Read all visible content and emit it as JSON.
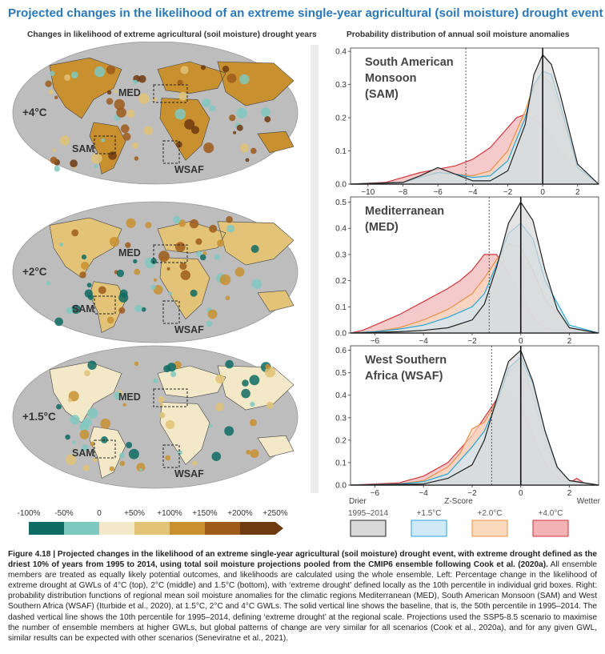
{
  "figure_title": "Projected changes in the likelihood of an extreme single-year agricultural (soil moisture) drought event",
  "left_subtitle": "Changes in likelihood of extreme agricultural (soil moisture) drought years",
  "right_subtitle": "Probability distribution of annual soil moisture anomalies",
  "maps": [
    {
      "warming": "+4°C",
      "regions": [
        "MED",
        "SAM",
        "WSAF"
      ]
    },
    {
      "warming": "+2°C",
      "regions": [
        "MED",
        "SAM",
        "WSAF"
      ]
    },
    {
      "warming": "+1.5°C",
      "regions": [
        "MED",
        "SAM",
        "WSAF"
      ]
    }
  ],
  "colorbar": {
    "labels": [
      "-100%",
      "-50%",
      "0",
      "+50%",
      "+100%",
      "+150%",
      "+200%",
      "+250%"
    ],
    "colors": [
      "#0e6b63",
      "#7fc8bf",
      "#f3e8c8",
      "#e2c377",
      "#c8902f",
      "#9e5c1a",
      "#6e3a10"
    ]
  },
  "series_legend": [
    {
      "label": "1995–2014",
      "fill": "#d9d9d9",
      "stroke": "#222222"
    },
    {
      "label": "+1.5°C",
      "fill": "#cfe9f6",
      "stroke": "#2ba6d6"
    },
    {
      "label": "+2.0°C",
      "fill": "#fbd9bd",
      "stroke": "#e8914a"
    },
    {
      "label": "+4.0°C",
      "fill": "#f1b3b5",
      "stroke": "#d3363d"
    }
  ],
  "axis_text": {
    "drier": "Drier",
    "zscore": "Z-Score",
    "wetter": "Wetter"
  },
  "chart_data": [
    {
      "type": "area",
      "region_label": [
        "South American",
        "Monsoon",
        "(SAM)"
      ],
      "xlim": [
        -11,
        3.2
      ],
      "ylim": [
        0,
        0.41
      ],
      "xticks": [
        -10,
        -8,
        -6,
        -4,
        -2,
        0,
        2
      ],
      "yticks": [
        0.0,
        0.1,
        0.2,
        0.3,
        0.4
      ],
      "ytick_labels": [
        "0.0",
        "0.1",
        "0.2",
        "0.3",
        "0.4"
      ],
      "baseline_median": 0,
      "baseline_p10": -4.4,
      "series": [
        {
          "name": "+4.0°C",
          "x": [
            -11,
            -9,
            -8,
            -7,
            -6,
            -5,
            -4,
            -3,
            -2,
            -1.5,
            -1,
            0,
            1,
            2,
            3.2
          ],
          "y": [
            0,
            0.005,
            0.02,
            0.035,
            0.045,
            0.055,
            0.075,
            0.11,
            0.17,
            0.2,
            0.21,
            0.18,
            0.1,
            0.03,
            0
          ]
        },
        {
          "name": "+2.0°C",
          "x": [
            -11,
            -8,
            -7,
            -6,
            -5,
            -4,
            -3,
            -2,
            -1,
            -0.5,
            0,
            0.5,
            1,
            2,
            3.2
          ],
          "y": [
            0,
            0.005,
            0.02,
            0.035,
            0.03,
            0.025,
            0.04,
            0.1,
            0.22,
            0.3,
            0.33,
            0.3,
            0.22,
            0.05,
            0
          ]
        },
        {
          "name": "+1.5°C",
          "x": [
            -11,
            -8,
            -7,
            -6,
            -5,
            -4,
            -3,
            -2,
            -1,
            -0.5,
            0,
            0.5,
            1,
            2,
            3.2
          ],
          "y": [
            0,
            0.005,
            0.02,
            0.035,
            0.03,
            0.02,
            0.025,
            0.07,
            0.2,
            0.3,
            0.34,
            0.33,
            0.24,
            0.05,
            0
          ]
        },
        {
          "name": "1995–2014",
          "x": [
            -11,
            -8,
            -7,
            -6,
            -5,
            -4,
            -3,
            -2,
            -1,
            -0.5,
            0,
            0.5,
            1,
            2,
            3.2
          ],
          "y": [
            0,
            0.005,
            0.025,
            0.05,
            0.03,
            0.01,
            0.01,
            0.04,
            0.18,
            0.33,
            0.39,
            0.36,
            0.27,
            0.06,
            0
          ]
        }
      ]
    },
    {
      "type": "area",
      "region_label": [
        "Mediterranean",
        "(MED)"
      ],
      "xlim": [
        -7,
        3.2
      ],
      "ylim": [
        0,
        0.52
      ],
      "xticks": [
        -6,
        -4,
        -2,
        0,
        2
      ],
      "yticks": [
        0.0,
        0.1,
        0.2,
        0.3,
        0.4,
        0.5
      ],
      "ytick_labels": [
        "0.0",
        "0.1",
        "0.2",
        "0.3",
        "0.4",
        "0.5"
      ],
      "baseline_median": 0,
      "baseline_p10": -1.3,
      "series": [
        {
          "name": "+4.0°C",
          "x": [
            -7,
            -6.5,
            -6,
            -5,
            -4,
            -3,
            -2.5,
            -2,
            -1.5,
            -1,
            -0.5,
            0,
            0.5,
            1,
            2,
            3.2
          ],
          "y": [
            0,
            0.01,
            0.03,
            0.07,
            0.12,
            0.17,
            0.2,
            0.24,
            0.3,
            0.3,
            0.23,
            0.14,
            0.06,
            0.02,
            0.005,
            0
          ]
        },
        {
          "name": "+2.0°C",
          "x": [
            -7,
            -6,
            -5,
            -4,
            -3,
            -2,
            -1.5,
            -1,
            -0.5,
            0,
            0.5,
            1,
            2,
            3.2
          ],
          "y": [
            0,
            0.005,
            0.02,
            0.05,
            0.09,
            0.15,
            0.21,
            0.28,
            0.34,
            0.33,
            0.24,
            0.13,
            0.02,
            0
          ]
        },
        {
          "name": "+1.5°C",
          "x": [
            -7,
            -6,
            -5,
            -4,
            -3,
            -2,
            -1.5,
            -1,
            -0.5,
            0,
            0.5,
            1,
            2,
            3.2
          ],
          "y": [
            0,
            0.005,
            0.015,
            0.03,
            0.06,
            0.1,
            0.15,
            0.26,
            0.38,
            0.42,
            0.36,
            0.2,
            0.03,
            0
          ]
        },
        {
          "name": "1995–2014",
          "x": [
            -7,
            -5,
            -4,
            -3,
            -2,
            -1.5,
            -1,
            -0.5,
            0,
            0.5,
            1,
            1.5,
            2,
            3.2
          ],
          "y": [
            0,
            0.005,
            0.01,
            0.02,
            0.05,
            0.11,
            0.25,
            0.42,
            0.5,
            0.43,
            0.24,
            0.09,
            0.02,
            0
          ]
        }
      ]
    },
    {
      "type": "area",
      "region_label": [
        "West Southern",
        "Africa (WSAF)"
      ],
      "xlim": [
        -7,
        3.2
      ],
      "ylim": [
        0,
        0.62
      ],
      "xticks": [
        -6,
        -4,
        -2,
        0,
        2
      ],
      "yticks": [
        0.0,
        0.1,
        0.2,
        0.3,
        0.4,
        0.5,
        0.6
      ],
      "ytick_labels": [
        "0.0",
        "0.1",
        "0.2",
        "0.3",
        "0.4",
        "0.5",
        "0.6"
      ],
      "baseline_median": 0,
      "baseline_p10": -1.2,
      "series": [
        {
          "name": "+4.0°C",
          "x": [
            -7,
            -6,
            -5,
            -4,
            -3,
            -2.5,
            -2,
            -1.5,
            -1,
            -0.5,
            0,
            0.5,
            1,
            1.5,
            2,
            2.3,
            2.6,
            3.2
          ],
          "y": [
            0,
            0.005,
            0.01,
            0.04,
            0.1,
            0.16,
            0.22,
            0.3,
            0.38,
            0.42,
            0.36,
            0.22,
            0.1,
            0.03,
            0.01,
            0.03,
            0.01,
            0
          ]
        },
        {
          "name": "+2.0°C",
          "x": [
            -7,
            -5,
            -4,
            -3,
            -2.5,
            -2,
            -1.5,
            -1,
            -0.5,
            0,
            0.5,
            1,
            1.5,
            2,
            3.2
          ],
          "y": [
            0,
            0.005,
            0.02,
            0.08,
            0.14,
            0.25,
            0.28,
            0.37,
            0.5,
            0.55,
            0.4,
            0.2,
            0.07,
            0.02,
            0
          ]
        },
        {
          "name": "+1.5°C",
          "x": [
            -7,
            -5,
            -4,
            -3,
            -2,
            -1.5,
            -1,
            -0.5,
            0,
            0.5,
            1,
            1.5,
            2,
            3.2
          ],
          "y": [
            0,
            0.005,
            0.015,
            0.05,
            0.17,
            0.24,
            0.36,
            0.52,
            0.57,
            0.45,
            0.24,
            0.08,
            0.02,
            0
          ]
        },
        {
          "name": "1995–2014",
          "x": [
            -7,
            -4,
            -3,
            -2,
            -1.5,
            -1,
            -0.5,
            0,
            0.5,
            1,
            1.5,
            2,
            3.2
          ],
          "y": [
            0,
            0.005,
            0.03,
            0.09,
            0.2,
            0.38,
            0.55,
            0.6,
            0.46,
            0.24,
            0.08,
            0.02,
            0
          ]
        }
      ]
    }
  ],
  "caption": {
    "label": "Figure 4.18 |",
    "bold": "Projected changes in the likelihood of an extreme single-year agricultural (soil moisture) drought event, with extreme drought defined as the driest 10% of years from 1995 to 2014, using total soil moisture projections pooled from the CMIP6 ensemble following Cook et al. (2020a).",
    "text": "All ensemble members are treated as equally likely potential outcomes, and likelihoods are calculated using the whole ensemble. Left: Percentage change in the likelihood of extreme drought at GWLs of 4°C (top), 2°C (middle) and 1.5°C (bottom), with ‘extreme drought’ defined locally as the 10th percentile in individual grid boxes. Right: probability distribution functions of regional mean soil moisture anomalies for the climatic regions Mediterranean (MED), South American Monsoon (SAM) and West Southern Africa (WSAF) (Iturbide et al., 2020), at 1.5°C, 2°C and 4°C GWLs. The solid vertical line shows the baseline, that is, the 50th percentile in 1995–2014. The dashed vertical line shows the 10th percentile for 1995–2014, defining ‘extreme drought’ at the regional scale. Projections used the SSP5-8.5 scenario to maximise the number of ensemble members at higher GWLs, but global patterns of change are very similar for all scenarios (Cook et al., 2020a), and for any given GWL, similar results can be expected with other scenarios (Seneviratne et al., 2021)."
  }
}
